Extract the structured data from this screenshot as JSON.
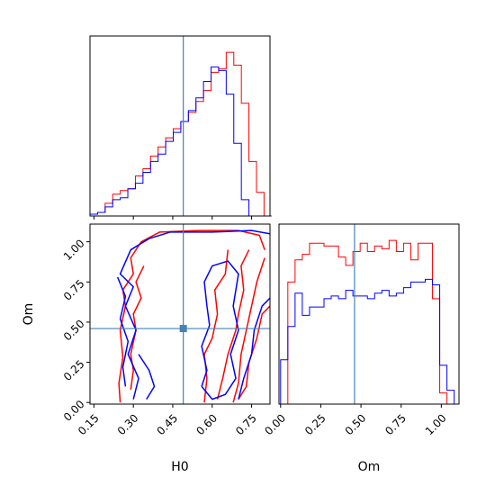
{
  "chart_data": {
    "type": "corner",
    "parameters": [
      "H0",
      "Om"
    ],
    "truth": {
      "H0": 0.49,
      "Om": 0.46
    },
    "colors": {
      "red": "#ff0000",
      "blue": "#0000ff",
      "truth": "#4682b4"
    },
    "axes": {
      "H0": {
        "label": "H0",
        "range": [
          0.135,
          0.82
        ],
        "ticks": [
          0.15,
          0.3,
          0.45,
          0.6,
          0.75
        ],
        "tick_labels": [
          "0.15",
          "0.30",
          "0.45",
          "0.60",
          "0.75"
        ]
      },
      "Om": {
        "label": "Om",
        "range": [
          -0.01,
          1.11
        ],
        "ticks": [
          0.0,
          0.25,
          0.5,
          0.75,
          1.0
        ],
        "tick_labels": [
          "0.00",
          "0.25",
          "0.50",
          "0.75",
          "1.00"
        ]
      }
    },
    "hist_H0": {
      "bin_edges": [
        0.135,
        0.1638,
        0.1926,
        0.2214,
        0.2502,
        0.279,
        0.3078,
        0.3366,
        0.3654,
        0.3942,
        0.423,
        0.4518,
        0.4806,
        0.5094,
        0.5382,
        0.567,
        0.5958,
        0.6246,
        0.6534,
        0.6822,
        0.711,
        0.7398,
        0.7686,
        0.7974,
        0.8262
      ],
      "series": [
        {
          "color": "red",
          "values": [
            1,
            2,
            7,
            12,
            14,
            15,
            22,
            26,
            33,
            38,
            43,
            48,
            52,
            57,
            63,
            69,
            79,
            81,
            90,
            83,
            62,
            30,
            13,
            0
          ]
        },
        {
          "color": "blue",
          "values": [
            1,
            2,
            5,
            9,
            10,
            15,
            18,
            24,
            30,
            34,
            41,
            46,
            52,
            58,
            65,
            74,
            82,
            80,
            67,
            40,
            9,
            0,
            0,
            0
          ]
        }
      ]
    },
    "hist_Om": {
      "bin_edges": [
        0.0,
        0.045,
        0.09,
        0.135,
        0.18,
        0.225,
        0.27,
        0.315,
        0.36,
        0.405,
        0.45,
        0.495,
        0.54,
        0.585,
        0.63,
        0.675,
        0.72,
        0.765,
        0.81,
        0.855,
        0.9,
        0.945,
        0.99,
        1.035,
        1.08
      ],
      "series": [
        {
          "color": "red",
          "values": [
            0,
            44,
            52,
            54,
            58,
            58,
            57,
            57,
            53,
            50,
            55,
            58,
            55,
            57,
            56,
            59,
            55,
            58,
            52,
            58,
            58,
            38,
            4,
            0
          ]
        },
        {
          "color": "blue",
          "values": [
            16,
            28,
            40,
            32,
            35,
            35,
            38,
            39,
            38,
            41,
            39,
            39,
            38,
            40,
            41,
            39,
            40,
            42,
            44,
            44,
            45,
            43,
            14,
            5
          ]
        }
      ]
    },
    "contours_H0_Om": [
      {
        "color": "red",
        "paths": [
          [
            [
              0.25,
              0.0
            ],
            [
              0.245,
              0.12
            ],
            [
              0.26,
              0.28
            ],
            [
              0.25,
              0.45
            ],
            [
              0.27,
              0.6
            ],
            [
              0.26,
              0.7
            ],
            [
              0.3,
              0.8
            ],
            [
              0.29,
              0.9
            ],
            [
              0.33,
              1.0
            ],
            [
              0.4,
              1.06
            ],
            [
              0.55,
              1.07
            ],
            [
              0.7,
              1.07
            ],
            [
              0.78,
              1.04
            ],
            [
              0.8,
              0.95
            ]
          ],
          [
            [
              0.29,
              0.08
            ],
            [
              0.3,
              0.2
            ],
            [
              0.29,
              0.3
            ],
            [
              0.31,
              0.45
            ],
            [
              0.3,
              0.55
            ],
            [
              0.33,
              0.65
            ],
            [
              0.31,
              0.75
            ],
            [
              0.34,
              0.85
            ]
          ],
          [
            [
              0.57,
              0.0
            ],
            [
              0.58,
              0.15
            ],
            [
              0.57,
              0.3
            ],
            [
              0.6,
              0.4
            ],
            [
              0.62,
              0.55
            ],
            [
              0.61,
              0.7
            ],
            [
              0.65,
              0.8
            ],
            [
              0.66,
              0.95
            ]
          ],
          [
            [
              0.62,
              0.02
            ],
            [
              0.64,
              0.15
            ],
            [
              0.66,
              0.3
            ],
            [
              0.69,
              0.45
            ],
            [
              0.7,
              0.55
            ],
            [
              0.72,
              0.7
            ],
            [
              0.71,
              0.85
            ],
            [
              0.74,
              0.95
            ]
          ],
          [
            [
              0.68,
              0.0
            ],
            [
              0.7,
              0.12
            ],
            [
              0.71,
              0.3
            ],
            [
              0.73,
              0.45
            ],
            [
              0.75,
              0.6
            ],
            [
              0.77,
              0.75
            ],
            [
              0.8,
              0.9
            ]
          ],
          [
            [
              0.7,
              0.02
            ],
            [
              0.73,
              0.1
            ],
            [
              0.74,
              0.25
            ],
            [
              0.77,
              0.4
            ],
            [
              0.79,
              0.55
            ],
            [
              0.82,
              0.6
            ]
          ]
        ]
      },
      {
        "color": "blue",
        "paths": [
          [
            [
              0.3,
              0.02
            ],
            [
              0.32,
              0.15
            ],
            [
              0.28,
              0.3
            ],
            [
              0.31,
              0.45
            ],
            [
              0.27,
              0.6
            ],
            [
              0.3,
              0.72
            ],
            [
              0.25,
              0.8
            ],
            [
              0.29,
              0.95
            ],
            [
              0.36,
              1.02
            ],
            [
              0.44,
              1.06
            ],
            [
              0.6,
              1.06
            ],
            [
              0.75,
              1.07
            ],
            [
              0.82,
              1.05
            ]
          ],
          [
            [
              0.27,
              0.1
            ],
            [
              0.26,
              0.22
            ],
            [
              0.28,
              0.38
            ],
            [
              0.25,
              0.52
            ],
            [
              0.27,
              0.66
            ],
            [
              0.24,
              0.78
            ]
          ],
          [
            [
              0.35,
              0.02
            ],
            [
              0.38,
              0.1
            ],
            [
              0.36,
              0.2
            ],
            [
              0.32,
              0.3
            ]
          ],
          [
            [
              0.56,
              0.1
            ],
            [
              0.58,
              0.2
            ],
            [
              0.56,
              0.35
            ],
            [
              0.59,
              0.48
            ],
            [
              0.58,
              0.6
            ],
            [
              0.57,
              0.75
            ],
            [
              0.6,
              0.85
            ],
            [
              0.66,
              0.88
            ],
            [
              0.7,
              0.8
            ],
            [
              0.68,
              0.6
            ],
            [
              0.7,
              0.45
            ],
            [
              0.67,
              0.3
            ],
            [
              0.69,
              0.15
            ],
            [
              0.65,
              0.05
            ],
            [
              0.6,
              0.02
            ],
            [
              0.56,
              0.1
            ]
          ],
          [
            [
              0.7,
              0.02
            ],
            [
              0.72,
              0.15
            ],
            [
              0.75,
              0.3
            ],
            [
              0.76,
              0.45
            ],
            [
              0.79,
              0.6
            ],
            [
              0.82,
              0.65
            ]
          ]
        ]
      }
    ]
  }
}
